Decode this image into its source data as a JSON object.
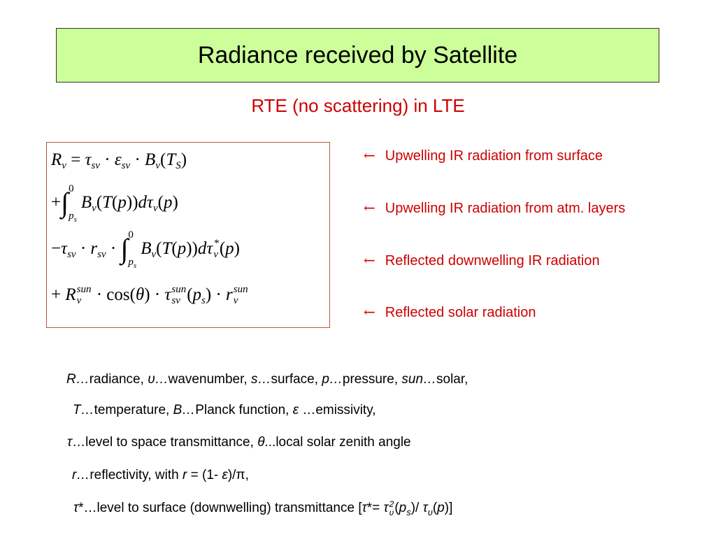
{
  "header": {
    "title": "Radiance received by Satellite"
  },
  "subtitle": "RTE (no scattering) in LTE",
  "equation": {
    "lines": [
      [
        {
          "text": "R",
          "style": "italic"
        },
        {
          "text": "ν",
          "style": "sub"
        },
        {
          "text": " = "
        },
        {
          "text": "τ",
          "style": "italic"
        },
        {
          "text": "sν",
          "style": "sub"
        },
        {
          "text": " · "
        },
        {
          "text": "ε",
          "style": "italic"
        },
        {
          "text": "sν",
          "style": "sub"
        },
        {
          "text": " · "
        },
        {
          "text": "B",
          "style": "italic"
        },
        {
          "text": "ν",
          "style": "sub"
        },
        {
          "text": "("
        },
        {
          "text": "T",
          "style": "italic"
        },
        {
          "text": "S",
          "style": "sub"
        },
        {
          "text": ")"
        }
      ],
      [
        {
          "text": "+"
        },
        {
          "text": "∫",
          "upper": "0",
          "lower": "p",
          "lower_sub": "s"
        },
        {
          "text": "B",
          "style": "italic"
        },
        {
          "text": "ν",
          "style": "sub"
        },
        {
          "text": "("
        },
        {
          "text": "T",
          "style": "italic"
        },
        {
          "text": "("
        },
        {
          "text": "p",
          "style": "italic"
        },
        {
          "text": "))"
        },
        {
          "text": "d",
          "style": "italic"
        },
        {
          "text": "τ",
          "style": "italic"
        },
        {
          "text": "ν",
          "style": "sub"
        },
        {
          "text": "("
        },
        {
          "text": "p",
          "style": "italic"
        },
        {
          "text": ")"
        }
      ],
      [
        {
          "text": "−"
        },
        {
          "text": "τ",
          "style": "italic"
        },
        {
          "text": "sν",
          "style": "sub"
        },
        {
          "text": " · "
        },
        {
          "text": "r",
          "style": "italic"
        },
        {
          "text": "sν",
          "style": "sub"
        },
        {
          "text": " · "
        },
        {
          "text": "∫",
          "upper": "0",
          "lower": "p",
          "lower_sub": "s"
        },
        {
          "text": "B",
          "style": "italic"
        },
        {
          "text": "ν",
          "style": "sub"
        },
        {
          "text": "("
        },
        {
          "text": "T",
          "style": "italic"
        },
        {
          "text": "("
        },
        {
          "text": "p",
          "style": "italic"
        },
        {
          "text": "))"
        },
        {
          "text": "d",
          "style": "italic"
        },
        {
          "text": "τ",
          "style": "italic"
        },
        {
          "sup": "*",
          "sub": "ν"
        },
        {
          "text": "("
        },
        {
          "text": "p",
          "style": "italic"
        },
        {
          "text": ")"
        }
      ],
      [
        {
          "text": "+ "
        },
        {
          "text": "R",
          "style": "italic"
        },
        {
          "sup": "sun",
          "sub": "ν"
        },
        {
          "text": " · cos("
        },
        {
          "text": "θ",
          "style": "italic"
        },
        {
          "text": ") · "
        },
        {
          "text": "τ",
          "style": "italic"
        },
        {
          "sup": "sun",
          "sub": "sν"
        },
        {
          "text": "("
        },
        {
          "text": "p",
          "style": "italic"
        },
        {
          "text": "s",
          "style": "sub"
        },
        {
          "text": ") · "
        },
        {
          "text": "r",
          "style": "italic"
        },
        {
          "sup": "sun",
          "sub": "ν"
        }
      ]
    ]
  },
  "annotations": [
    {
      "arrow": "←",
      "text": "Upwelling IR radiation from surface"
    },
    {
      "arrow": "←",
      "text": "Upwelling IR radiation from atm. layers"
    },
    {
      "arrow": "←",
      "text": "Reflected downwelling IR radiation"
    },
    {
      "arrow": "←",
      "text": "Reflected solar radiation"
    }
  ],
  "definitions": [
    [
      {
        "text": "R…",
        "style": "italic"
      },
      {
        "text": "radiance, "
      },
      {
        "text": "υ…",
        "style": "italic"
      },
      {
        "text": "wavenumber, "
      },
      {
        "text": "s…",
        "style": "italic"
      },
      {
        "text": "surface, "
      },
      {
        "text": "p…",
        "style": "italic"
      },
      {
        "text": "pressure, "
      },
      {
        "text": "sun…",
        "style": "italic"
      },
      {
        "text": "solar,"
      }
    ],
    [
      {
        "text": "T…",
        "style": "italic"
      },
      {
        "text": "temperature, "
      },
      {
        "text": "B…",
        "style": "italic"
      },
      {
        "text": "Planck function, "
      },
      {
        "text": "ε",
        "style": "italic"
      },
      {
        "text": " …emissivity,"
      }
    ],
    [
      {
        "text": "τ",
        "style": "italic"
      },
      {
        "text": "…level to space transmittance, "
      },
      {
        "text": "θ",
        "style": "italic"
      },
      {
        "text": "...local solar zenith angle"
      }
    ],
    [
      {
        "text": "r…",
        "style": "italic"
      },
      {
        "text": "reflectivity, with "
      },
      {
        "text": "r",
        "style": "italic"
      },
      {
        "text": " = (1- "
      },
      {
        "text": "ε",
        "style": "italic"
      },
      {
        "text": ")/π,"
      }
    ],
    [
      {
        "text": "τ",
        "style": "italic"
      },
      {
        "text": "*…level to surface (downwelling) transmittance ["
      },
      {
        "text": "τ",
        "style": "italic"
      },
      {
        "text": "*= "
      },
      {
        "text": "τ",
        "style": "italic"
      },
      {
        "sup": "2",
        "sub": "υ"
      },
      {
        "text": "("
      },
      {
        "text": "p",
        "style": "italic"
      },
      {
        "text": "s",
        "style": "sub"
      },
      {
        "text": ")/ "
      },
      {
        "text": "τ",
        "style": "italic"
      },
      {
        "text": "υ",
        "style": "sub"
      },
      {
        "text": "("
      },
      {
        "text": "p",
        "style": "italic"
      },
      {
        "text": ")]"
      }
    ]
  ]
}
